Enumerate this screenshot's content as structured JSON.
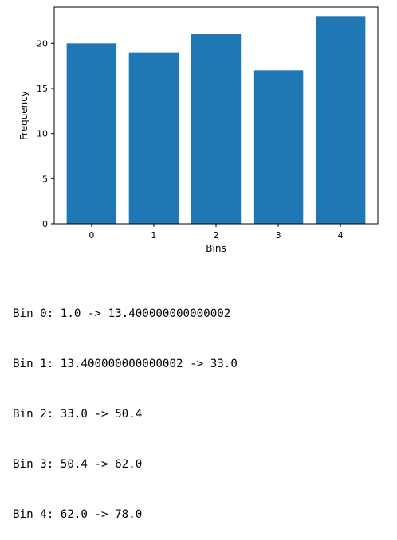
{
  "chart_data": {
    "type": "bar",
    "categories": [
      "0",
      "1",
      "2",
      "3",
      "4"
    ],
    "values": [
      20,
      19,
      21,
      17,
      23
    ],
    "title": "",
    "xlabel": "Bins",
    "ylabel": "Frequency",
    "ylim": [
      0,
      24
    ],
    "yticks": [
      "0",
      "5",
      "10",
      "15",
      "20"
    ],
    "bar_color": "#1f77b4",
    "grid": false,
    "legend": "none"
  },
  "output": {
    "lines": [
      "Bin 0: 1.0 -> 13.400000000000002",
      "Bin 1: 13.400000000000002 -> 33.0",
      "Bin 2: 33.0 -> 50.4",
      "Bin 3: 50.4 -> 62.0",
      "Bin 4: 62.0 -> 78.0"
    ]
  }
}
